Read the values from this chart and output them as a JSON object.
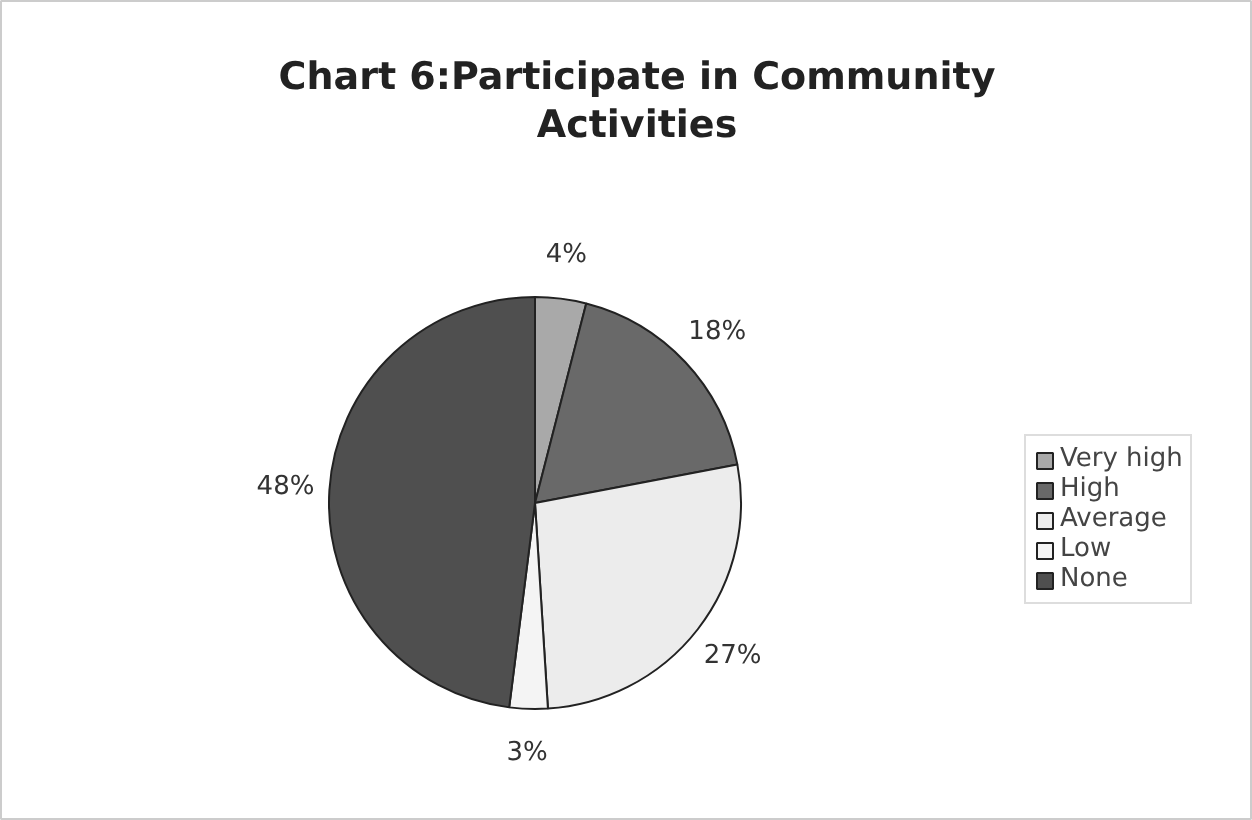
{
  "chart_data": {
    "type": "pie",
    "title": "Chart 6:Participate in Community Activities",
    "categories": [
      "Very high",
      "High",
      "Average",
      "Low",
      "None"
    ],
    "values": [
      4,
      18,
      27,
      3,
      48
    ],
    "value_labels": [
      "4%",
      "18%",
      "27%",
      "3%",
      "48%"
    ],
    "colors": [
      "#a9a9a9",
      "#696969",
      "#ececec",
      "#f4f4f4",
      "#4f4f4f"
    ],
    "legend": "right"
  }
}
